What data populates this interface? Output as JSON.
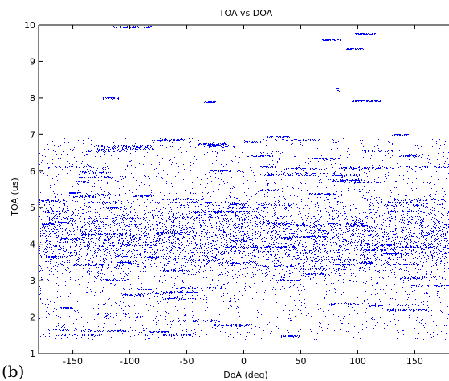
{
  "panel_label": "(b)",
  "chart_data": {
    "type": "scatter",
    "title": "TOA vs DOA",
    "xlabel": "DoA (deg)",
    "ylabel": "TOA (us)",
    "xlim": [
      -180,
      180
    ],
    "ylim": [
      1,
      10
    ],
    "xticks": [
      -150,
      -100,
      -50,
      0,
      50,
      100,
      150
    ],
    "yticks": [
      1,
      2,
      3,
      4,
      5,
      6,
      7,
      8,
      9,
      10
    ],
    "grid": false,
    "marker_color": "#0000ff",
    "series": [
      {
        "dense_region": {
          "x": [
            -180,
            180
          ],
          "y": [
            1.4,
            6.9
          ],
          "peak_density_y": [
            3.5,
            5.0
          ]
        },
        "clusters": [
          {
            "x": [
              -124,
              -110
            ],
            "y": [
              7.98,
              8.03
            ]
          },
          {
            "x": [
              -115,
              -78
            ],
            "y": [
              9.93,
              9.97
            ]
          },
          {
            "x": [
              68,
              85
            ],
            "y": [
              9.58,
              9.62
            ]
          },
          {
            "x": [
              90,
              105
            ],
            "y": [
              9.33,
              9.37
            ]
          },
          {
            "x": [
              97,
              115
            ],
            "y": [
              9.75,
              9.78
            ]
          },
          {
            "x": [
              95,
              120
            ],
            "y": [
              7.9,
              7.95
            ]
          },
          {
            "x": [
              -35,
              -25
            ],
            "y": [
              7.88,
              7.92
            ]
          },
          {
            "x": [
              -40,
              -15
            ],
            "y": [
              6.7,
              6.78
            ]
          },
          {
            "x": [
              20,
              40
            ],
            "y": [
              6.92,
              6.97
            ]
          },
          {
            "x": [
              130,
              145
            ],
            "y": [
              6.98,
              7.02
            ]
          },
          {
            "x": [
              0,
              15
            ],
            "y": [
              6.78,
              6.85
            ]
          },
          {
            "x": [
              -130,
              -80
            ],
            "y": [
              6.6,
              6.7
            ]
          },
          {
            "x": [
              80,
              84
            ],
            "y": [
              8.2,
              8.3
            ]
          }
        ]
      }
    ]
  }
}
